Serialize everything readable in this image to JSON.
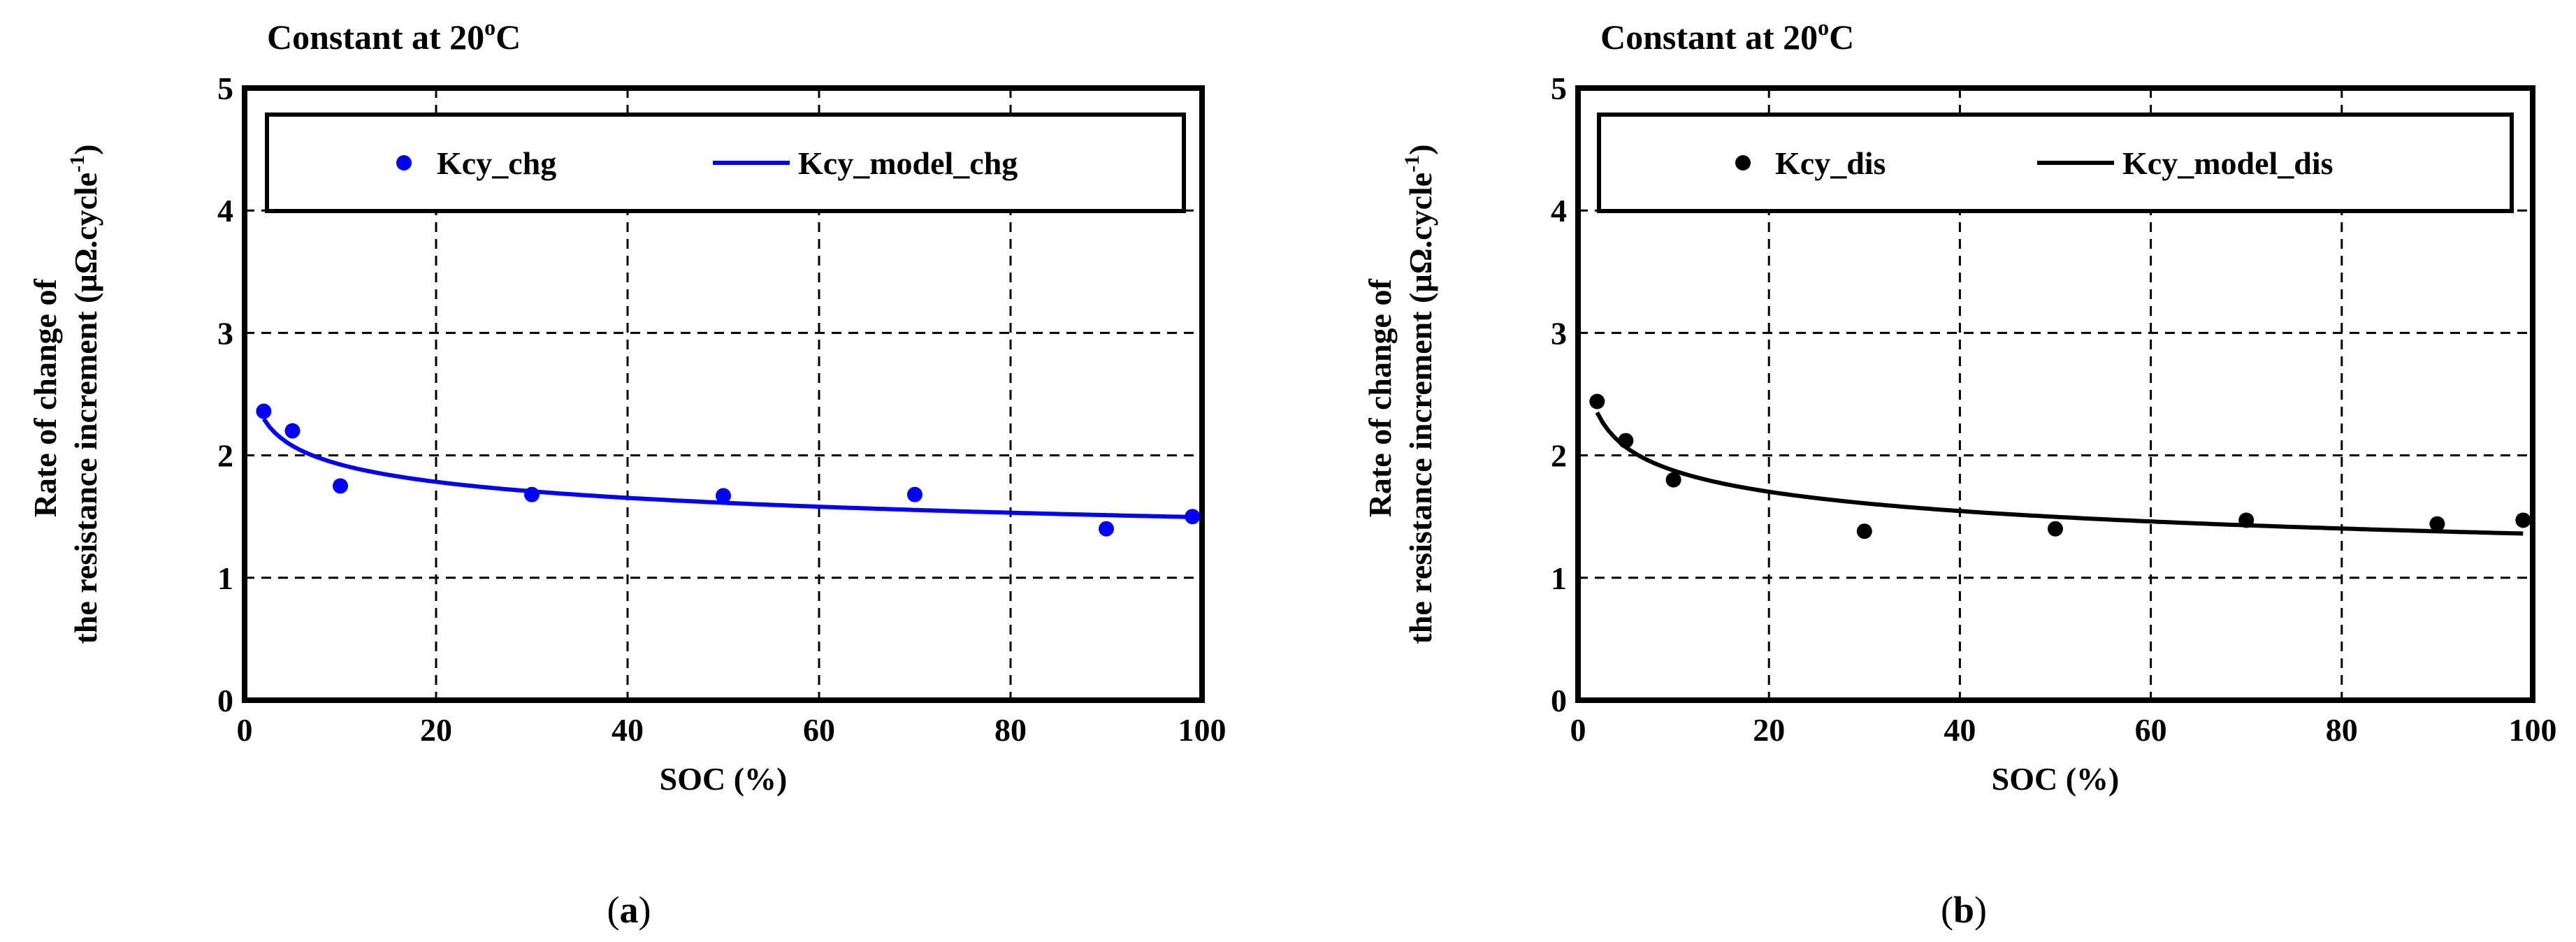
{
  "chart_data": [
    {
      "type": "scatter",
      "panel_label_prefix": "(",
      "panel_label_letter": "a",
      "panel_label_suffix": ")",
      "title_main": "Constant at 20",
      "title_sup": "o",
      "title_end": "C",
      "xlabel": "SOC (%)",
      "ylabel_line1": "Rate of change of",
      "ylabel_line2_main": "the resistance increment (µΩ.cycle",
      "ylabel_line2_sup": "-1",
      "ylabel_line2_end": ")",
      "xlim": [
        0,
        100
      ],
      "ylim": [
        0,
        5
      ],
      "xticks": [
        0,
        20,
        40,
        60,
        80,
        100
      ],
      "yticks": [
        0,
        1,
        2,
        3,
        4,
        5
      ],
      "xtick_labels": [
        "0",
        "20",
        "40",
        "60",
        "80",
        "100"
      ],
      "ytick_labels": [
        "0",
        "1",
        "2",
        "3",
        "4",
        "5"
      ],
      "grid": true,
      "legend_position": "top, inside plot",
      "color": "#0000ff",
      "series": [
        {
          "name": "Kcy_chg",
          "kind": "points",
          "x": [
            2,
            5,
            10,
            30,
            50,
            70,
            90,
            99
          ],
          "y": [
            2.36,
            2.2,
            1.75,
            1.68,
            1.67,
            1.68,
            1.4,
            1.5
          ]
        },
        {
          "name": "Kcy_model_chg",
          "kind": "line",
          "model_a": 2.48,
          "model_b": -0.11,
          "x_start": 2,
          "x_end": 99
        }
      ]
    },
    {
      "type": "scatter",
      "panel_label_prefix": "(",
      "panel_label_letter": "b",
      "panel_label_suffix": ")",
      "title_main": "Constant at 20",
      "title_sup": "o",
      "title_end": "C",
      "xlabel": "SOC (%)",
      "ylabel_line1": "Rate of change of",
      "ylabel_line2_main": "the resistance increment (µΩ.cycle",
      "ylabel_line2_sup": "-1",
      "ylabel_line2_end": ")",
      "xlim": [
        0,
        100
      ],
      "ylim": [
        0,
        5
      ],
      "xticks": [
        0,
        20,
        40,
        60,
        80,
        100
      ],
      "yticks": [
        0,
        1,
        2,
        3,
        4,
        5
      ],
      "xtick_labels": [
        "0",
        "20",
        "40",
        "60",
        "80",
        "100"
      ],
      "ytick_labels": [
        "0",
        "1",
        "2",
        "3",
        "4",
        "5"
      ],
      "grid": true,
      "legend_position": "top, inside plot",
      "color": "#000000",
      "series": [
        {
          "name": "Kcy_dis",
          "kind": "points",
          "x": [
            2,
            5,
            10,
            30,
            50,
            70,
            90,
            99
          ],
          "y": [
            2.44,
            2.12,
            1.8,
            1.38,
            1.4,
            1.47,
            1.44,
            1.47
          ]
        },
        {
          "name": "Kcy_model_dis",
          "kind": "line",
          "model_a": 2.59,
          "model_b": -0.14,
          "x_start": 2,
          "x_end": 99
        }
      ]
    }
  ]
}
